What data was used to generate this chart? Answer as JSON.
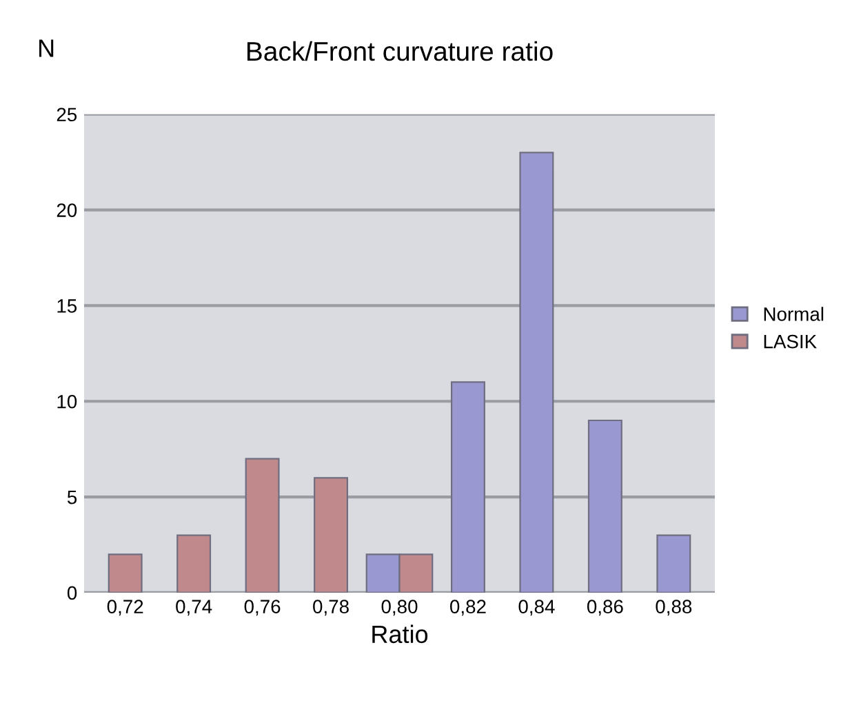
{
  "chart_data": {
    "type": "bar",
    "title": "Back/Front curvature ratio",
    "xlabel": "Ratio",
    "ylabel": "N",
    "categories": [
      "0,72",
      "0,74",
      "0,76",
      "0,78",
      "0,80",
      "0,82",
      "0,84",
      "0,86",
      "0,88"
    ],
    "series": [
      {
        "name": "Normal",
        "color": "#9a98d0",
        "values": [
          null,
          null,
          null,
          null,
          2,
          11,
          23,
          9,
          3
        ]
      },
      {
        "name": "LASIK",
        "color": "#c08a8c",
        "values": [
          2,
          3,
          7,
          6,
          2,
          null,
          null,
          null,
          null
        ]
      }
    ],
    "ylim": [
      0,
      25
    ],
    "yticks": [
      0,
      5,
      10,
      15,
      20,
      25
    ],
    "grid": "y",
    "legend": "right"
  }
}
